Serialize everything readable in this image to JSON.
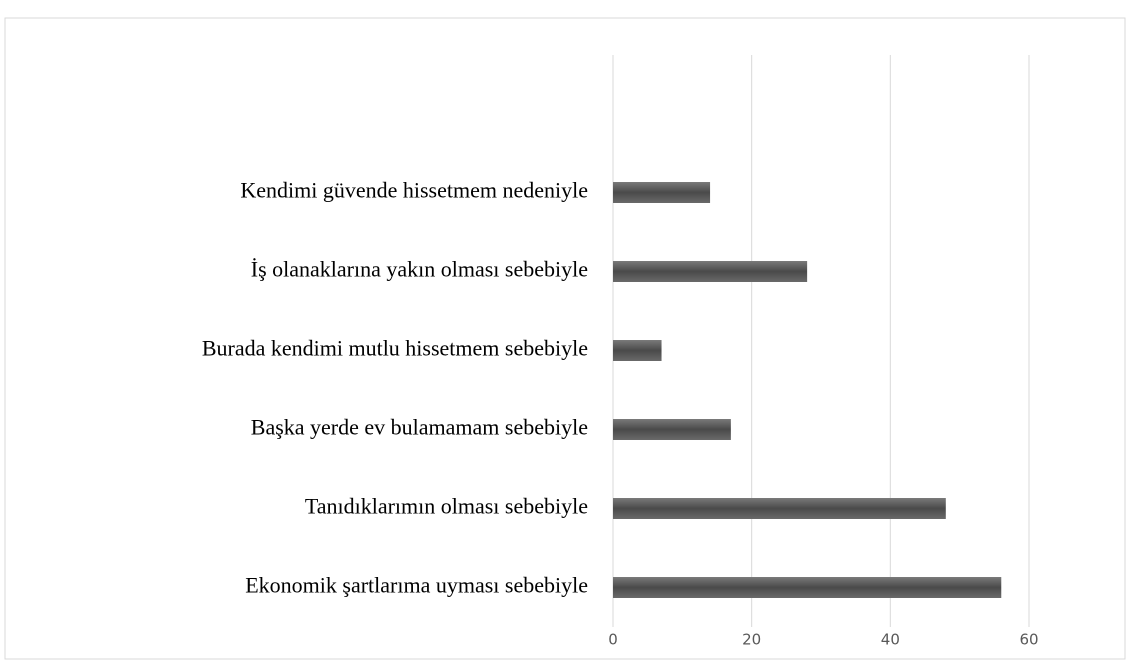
{
  "chart_data": {
    "type": "bar",
    "orientation": "horizontal",
    "categories": [
      "Kendimi güvende hissetmem nedeniyle",
      "İş olanaklarına yakın olması sebebiyle",
      "Burada kendimi mutlu hissetmem sebebiyle",
      "Başka yerde ev bulamamam sebebiyle",
      "Tanıdıklarımın olması sebebiyle",
      "Ekonomik şartlarıma uyması sebebiyle"
    ],
    "values": [
      14,
      28,
      7,
      17,
      48,
      56
    ],
    "color": "#5a5a5a",
    "xlim": [
      0,
      60
    ],
    "xticks": [
      0,
      20,
      40,
      60
    ],
    "grid": true
  }
}
